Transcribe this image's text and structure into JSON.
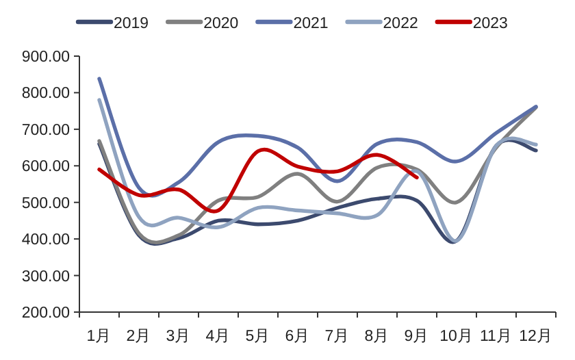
{
  "chart_data": {
    "type": "line",
    "categories": [
      "1月",
      "2月",
      "3月",
      "4月",
      "5月",
      "6月",
      "7月",
      "8月",
      "9月",
      "10月",
      "11月",
      "12月"
    ],
    "series": [
      {
        "name": "2019",
        "color": "#3c4a6e",
        "values": [
          660,
          410,
          402,
          450,
          440,
          450,
          485,
          510,
          505,
          395,
          655,
          642
        ]
      },
      {
        "name": "2020",
        "color": "#808080",
        "values": [
          668,
          415,
          410,
          505,
          515,
          578,
          502,
          595,
          590,
          500,
          650,
          760
        ]
      },
      {
        "name": "2021",
        "color": "#5b6fa8",
        "values": [
          838,
          540,
          555,
          665,
          682,
          650,
          558,
          660,
          665,
          612,
          690,
          762
        ]
      },
      {
        "name": "2022",
        "color": "#8fa3c0",
        "values": [
          780,
          460,
          458,
          432,
          485,
          478,
          470,
          465,
          585,
          395,
          655,
          658
        ]
      },
      {
        "name": "2023",
        "color": "#c00000",
        "values": [
          590,
          520,
          535,
          478,
          640,
          598,
          585,
          630,
          568,
          null,
          null,
          null
        ]
      }
    ],
    "ylim": [
      200,
      900
    ],
    "yticks": [
      {
        "value": 200,
        "label": "200.00"
      },
      {
        "value": 300,
        "label": "300.00"
      },
      {
        "value": 400,
        "label": "400.00"
      },
      {
        "value": 500,
        "label": "500.00"
      },
      {
        "value": 600,
        "label": "600.00"
      },
      {
        "value": 700,
        "label": "700.00"
      },
      {
        "value": 800,
        "label": "800.00"
      },
      {
        "value": 900,
        "label": "900.00"
      }
    ],
    "grid": false,
    "legend": "top",
    "marker": "none",
    "line_style": "solid"
  }
}
